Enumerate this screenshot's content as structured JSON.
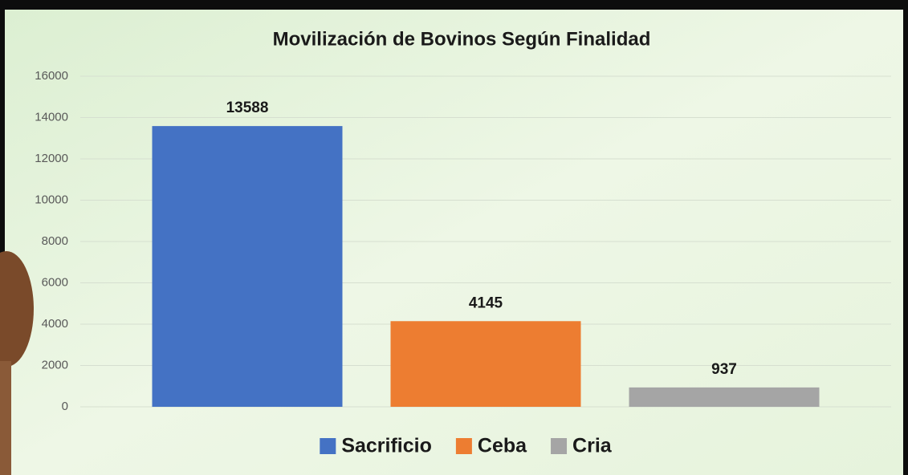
{
  "chart_data": {
    "type": "bar",
    "title": "Movilización de Bovinos Según Finalidad",
    "categories": [
      null
    ],
    "series": [
      {
        "name": "Sacrificio",
        "color": "#4472c4",
        "values": [
          13588
        ]
      },
      {
        "name": "Ceba",
        "color": "#ed7d31",
        "values": [
          4145
        ]
      },
      {
        "name": "Cria",
        "color": "#a5a5a5",
        "values": [
          937
        ]
      }
    ],
    "ylim": [
      0,
      16000
    ],
    "yticks": [
      0,
      2000,
      4000,
      6000,
      8000,
      10000,
      12000,
      14000,
      16000
    ],
    "grid": true,
    "legend": "bottom"
  }
}
